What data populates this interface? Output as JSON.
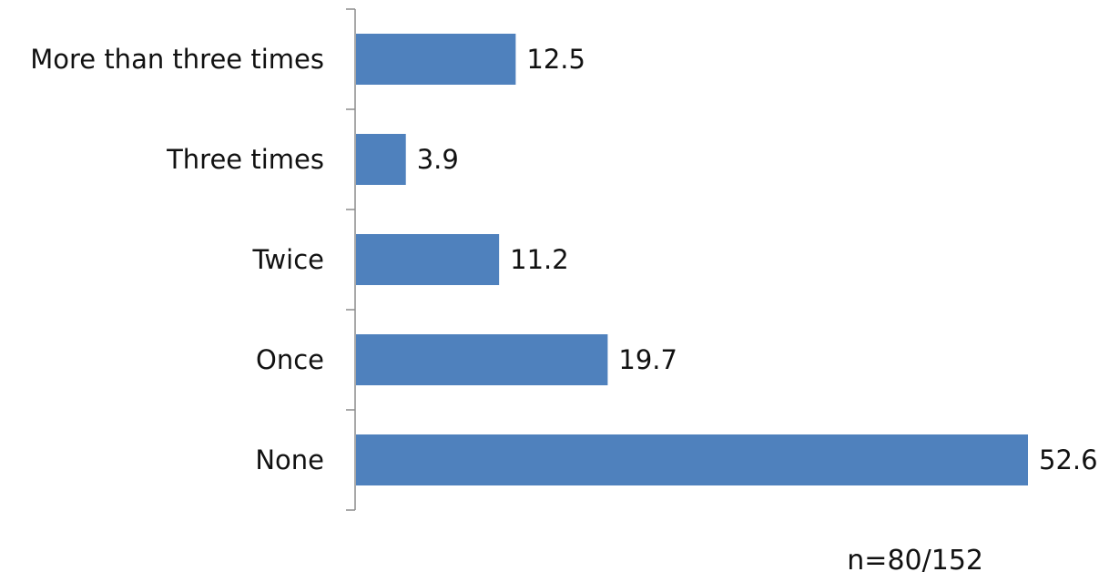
{
  "chart_data": {
    "type": "bar",
    "orientation": "horizontal",
    "categories": [
      "More than three times",
      "Three times",
      "Twice",
      "Once",
      "None"
    ],
    "values": [
      12.5,
      3.9,
      11.2,
      19.7,
      52.6
    ],
    "data_labels": [
      "12.5",
      "3.9",
      "11.2",
      "19.7",
      "52.6"
    ],
    "title": "",
    "xlabel": "",
    "ylabel": "",
    "xlim": [
      0,
      52.6
    ],
    "grid": false,
    "legend": "none",
    "bar_color": "#4f81bd",
    "note": "n=80/152"
  }
}
